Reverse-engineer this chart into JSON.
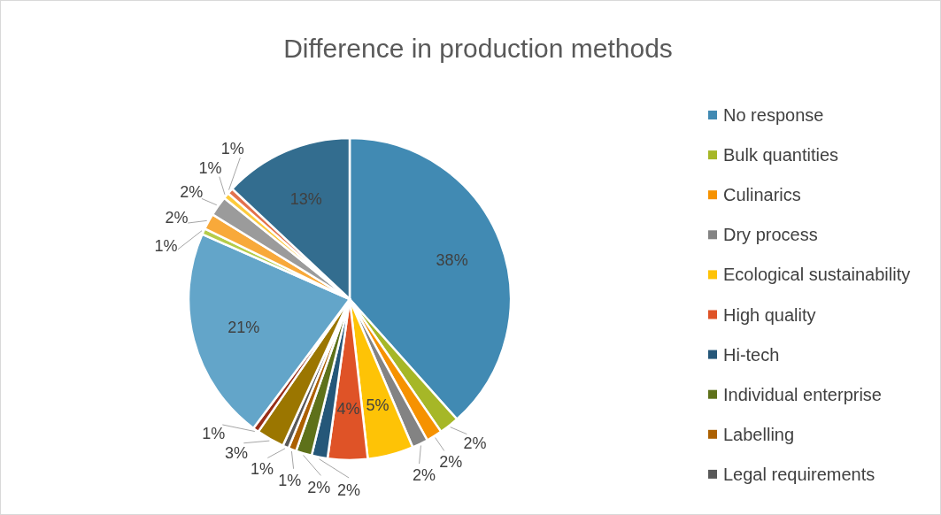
{
  "chart_data": {
    "type": "pie",
    "title": "Difference in production methods",
    "categories": [
      "No response",
      "Bulk quantities",
      "Culinarics",
      "Dry process",
      "Ecological sustainability",
      "High quality",
      "Hi-tech",
      "Individual enterprise",
      "Labelling",
      "Legal requirements",
      null,
      null,
      null,
      null,
      null,
      null,
      null,
      null,
      null
    ],
    "values": [
      38.4,
      2,
      1.6,
      1.6,
      4.6,
      4,
      1.6,
      1.6,
      0.8,
      0.6,
      2.8,
      0.6,
      21.4,
      0.6,
      1.6,
      2,
      0.6,
      0.6,
      13
    ],
    "value_labels": [
      "38%",
      "2%",
      "2%",
      "2%",
      "5%",
      "4%",
      "2%",
      "2%",
      "1%",
      "1%",
      "3%",
      "1%",
      "21%",
      "1%",
      "2%",
      "2%",
      "1%",
      "1%",
      "13%"
    ],
    "colors": [
      "#418ab3",
      "#a6b727",
      "#f69200",
      "#838383",
      "#fec306",
      "#df5327",
      "#255779",
      "#5e711a",
      "#ac6001",
      "#595959",
      "#9b7600",
      "#982e18",
      "#63a5c9",
      "#b5cc4a",
      "#f8a93a",
      "#9b9b9b",
      "#fdcb3c",
      "#e3714c",
      "#336d8f"
    ],
    "legend": "right"
  }
}
